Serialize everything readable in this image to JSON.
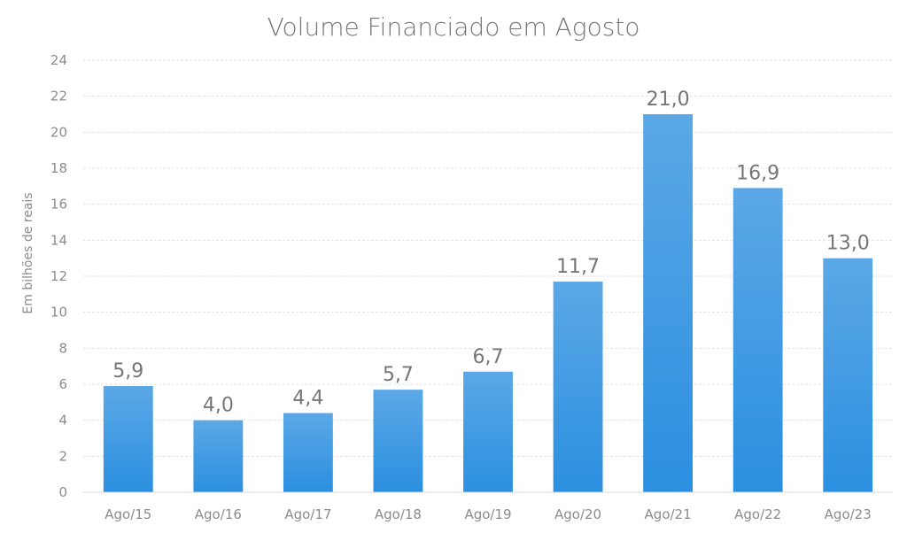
{
  "chart_data": {
    "type": "bar",
    "title": "Volume Financiado em Agosto",
    "xlabel": "",
    "ylabel": "Em bilhões de reais",
    "categories": [
      "Ago/15",
      "Ago/16",
      "Ago/17",
      "Ago/18",
      "Ago/19",
      "Ago/20",
      "Ago/21",
      "Ago/22",
      "Ago/23"
    ],
    "values": [
      5.9,
      4.0,
      4.4,
      5.7,
      6.7,
      11.7,
      21.0,
      16.9,
      13.0
    ],
    "data_labels": [
      "5,9",
      "4,0",
      "4,4",
      "5,7",
      "6,7",
      "11,7",
      "21,0",
      "16,9",
      "13,0"
    ],
    "ylim": [
      0,
      24
    ],
    "yticks": [
      0,
      2,
      4,
      6,
      8,
      10,
      12,
      14,
      16,
      18,
      20,
      22,
      24
    ],
    "grid": true,
    "legend": "none",
    "colors": {
      "bar_top": "#5ba8e6",
      "bar_bottom": "#2b8fe0",
      "text": "#767676",
      "axis_text": "#8c8c8c",
      "grid": "#e3e3e3"
    }
  }
}
